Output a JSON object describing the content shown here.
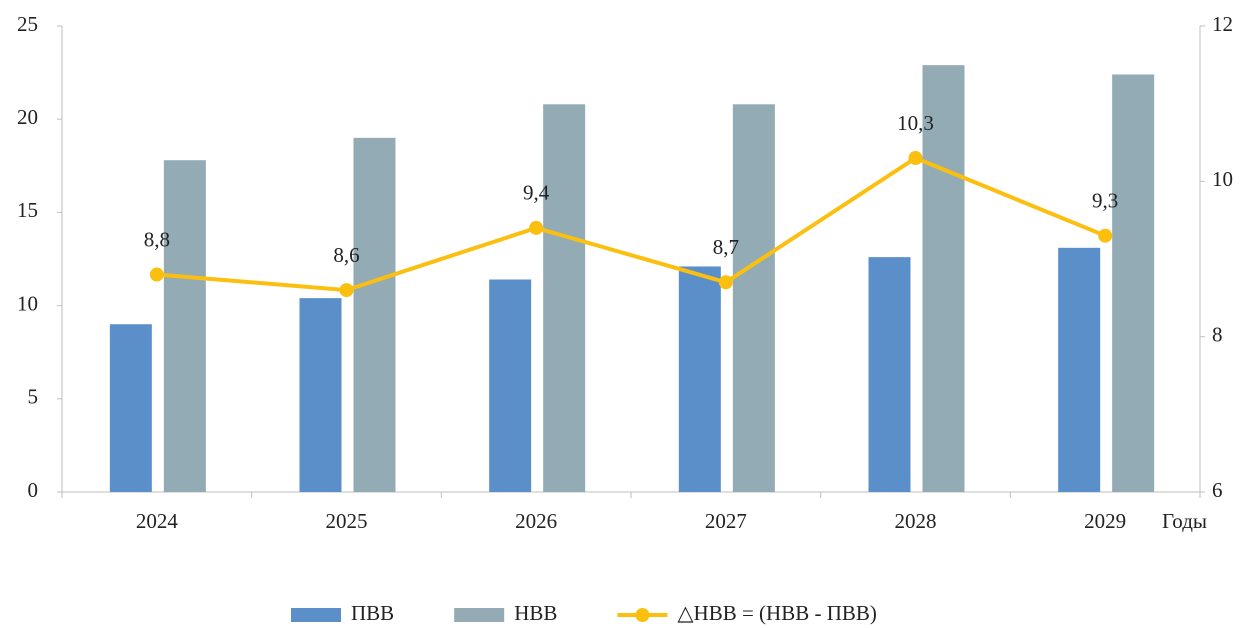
{
  "chart_data": {
    "type": "bar",
    "categories": [
      "2024",
      "2025",
      "2026",
      "2027",
      "2028",
      "2029"
    ],
    "x_label": "Годы",
    "series": [
      {
        "name": "ПВВ",
        "color": "#5b8fc9",
        "values": [
          9.0,
          10.4,
          11.4,
          12.1,
          12.6,
          13.1
        ]
      },
      {
        "name": "НВВ",
        "color": "#93abb4",
        "values": [
          17.8,
          19.0,
          20.8,
          20.8,
          22.9,
          22.4
        ]
      },
      {
        "name": "△НВВ  = (НВВ - ПВВ)",
        "color": "#fbbf0f",
        "type": "line",
        "axis": "y2",
        "values": [
          8.8,
          8.6,
          9.4,
          8.7,
          10.3,
          9.3
        ],
        "value_labels": [
          "8,8",
          "8,6",
          "9,4",
          "8,7",
          "10,3",
          "9,3"
        ]
      }
    ],
    "ylim": [
      0,
      25
    ],
    "yticks": [
      0,
      5,
      10,
      15,
      20,
      25
    ],
    "y2lim": [
      6,
      12
    ],
    "y2ticks": [
      6,
      8,
      10,
      12
    ],
    "legend": "bottom"
  }
}
